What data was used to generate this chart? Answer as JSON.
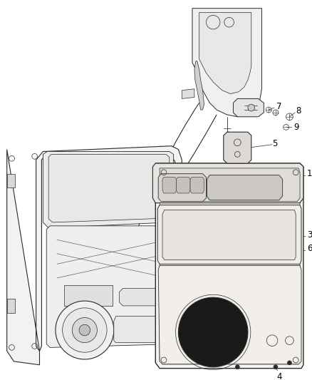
{
  "background_color": "#ffffff",
  "line_color": "#2a2a2a",
  "label_color": "#000000",
  "fig_width": 4.38,
  "fig_height": 5.33,
  "dpi": 100,
  "label_fontsize": 8.5
}
